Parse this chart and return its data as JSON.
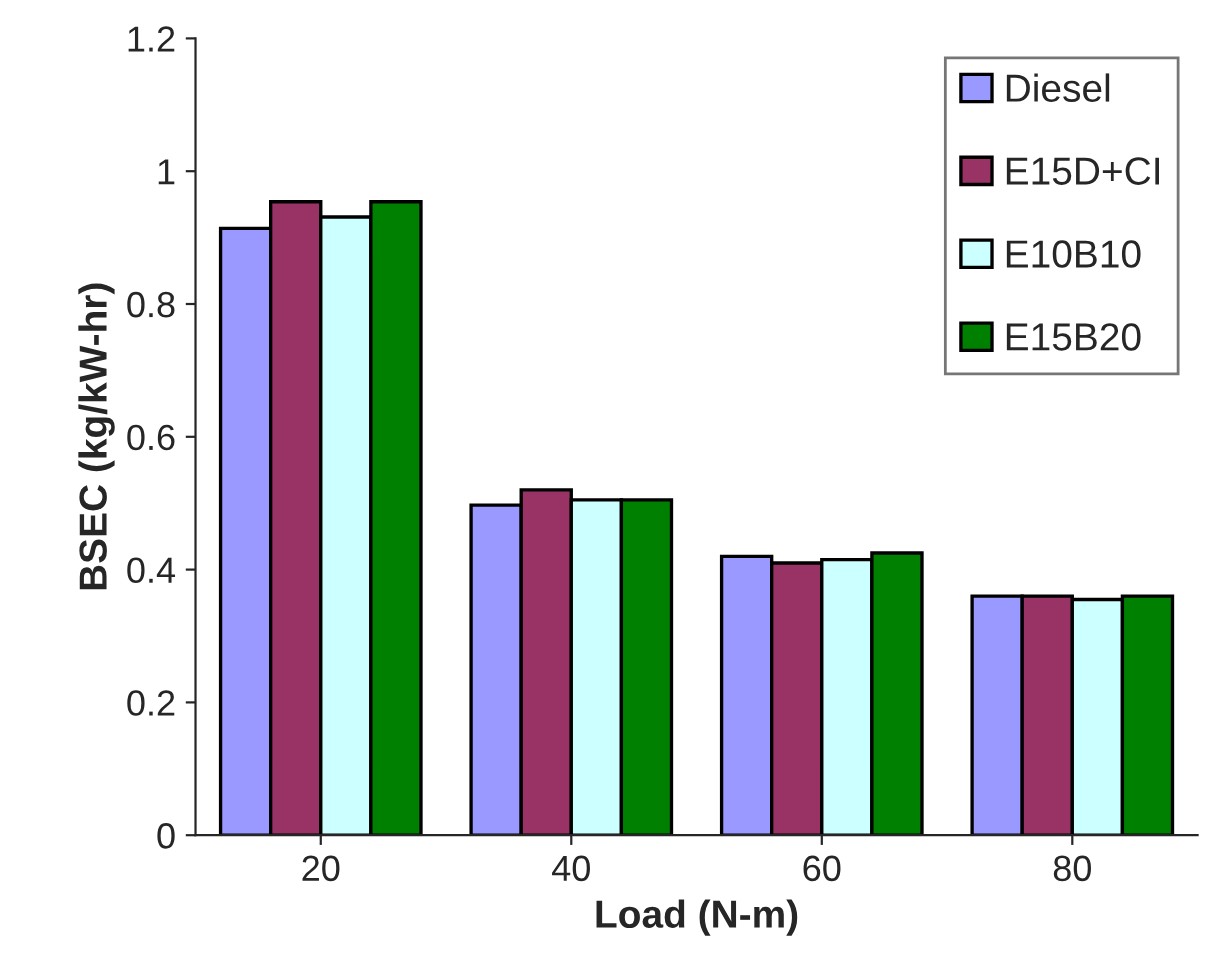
{
  "chart_data": {
    "type": "bar",
    "xlabel": "Load (N-m)",
    "ylabel": "BSEC (kg/kW-hr)",
    "categories": [
      "20",
      "40",
      "60",
      "80"
    ],
    "series": [
      {
        "name": "Diesel",
        "color": "#9999ff",
        "values": [
          0.914,
          0.497,
          0.42,
          0.36
        ]
      },
      {
        "name": "E15D+CI",
        "color": "#993366",
        "values": [
          0.954,
          0.52,
          0.41,
          0.36
        ]
      },
      {
        "name": "E10B10",
        "color": "#ccffff",
        "values": [
          0.931,
          0.505,
          0.415,
          0.355
        ]
      },
      {
        "name": "E15B20",
        "color": "#008000",
        "values": [
          0.954,
          0.505,
          0.425,
          0.36
        ]
      }
    ],
    "ylim": [
      0,
      1.2
    ],
    "yticks": [
      0,
      0.2,
      0.4,
      0.6,
      0.8,
      1,
      1.2
    ],
    "legend": "top right",
    "grid": false
  }
}
